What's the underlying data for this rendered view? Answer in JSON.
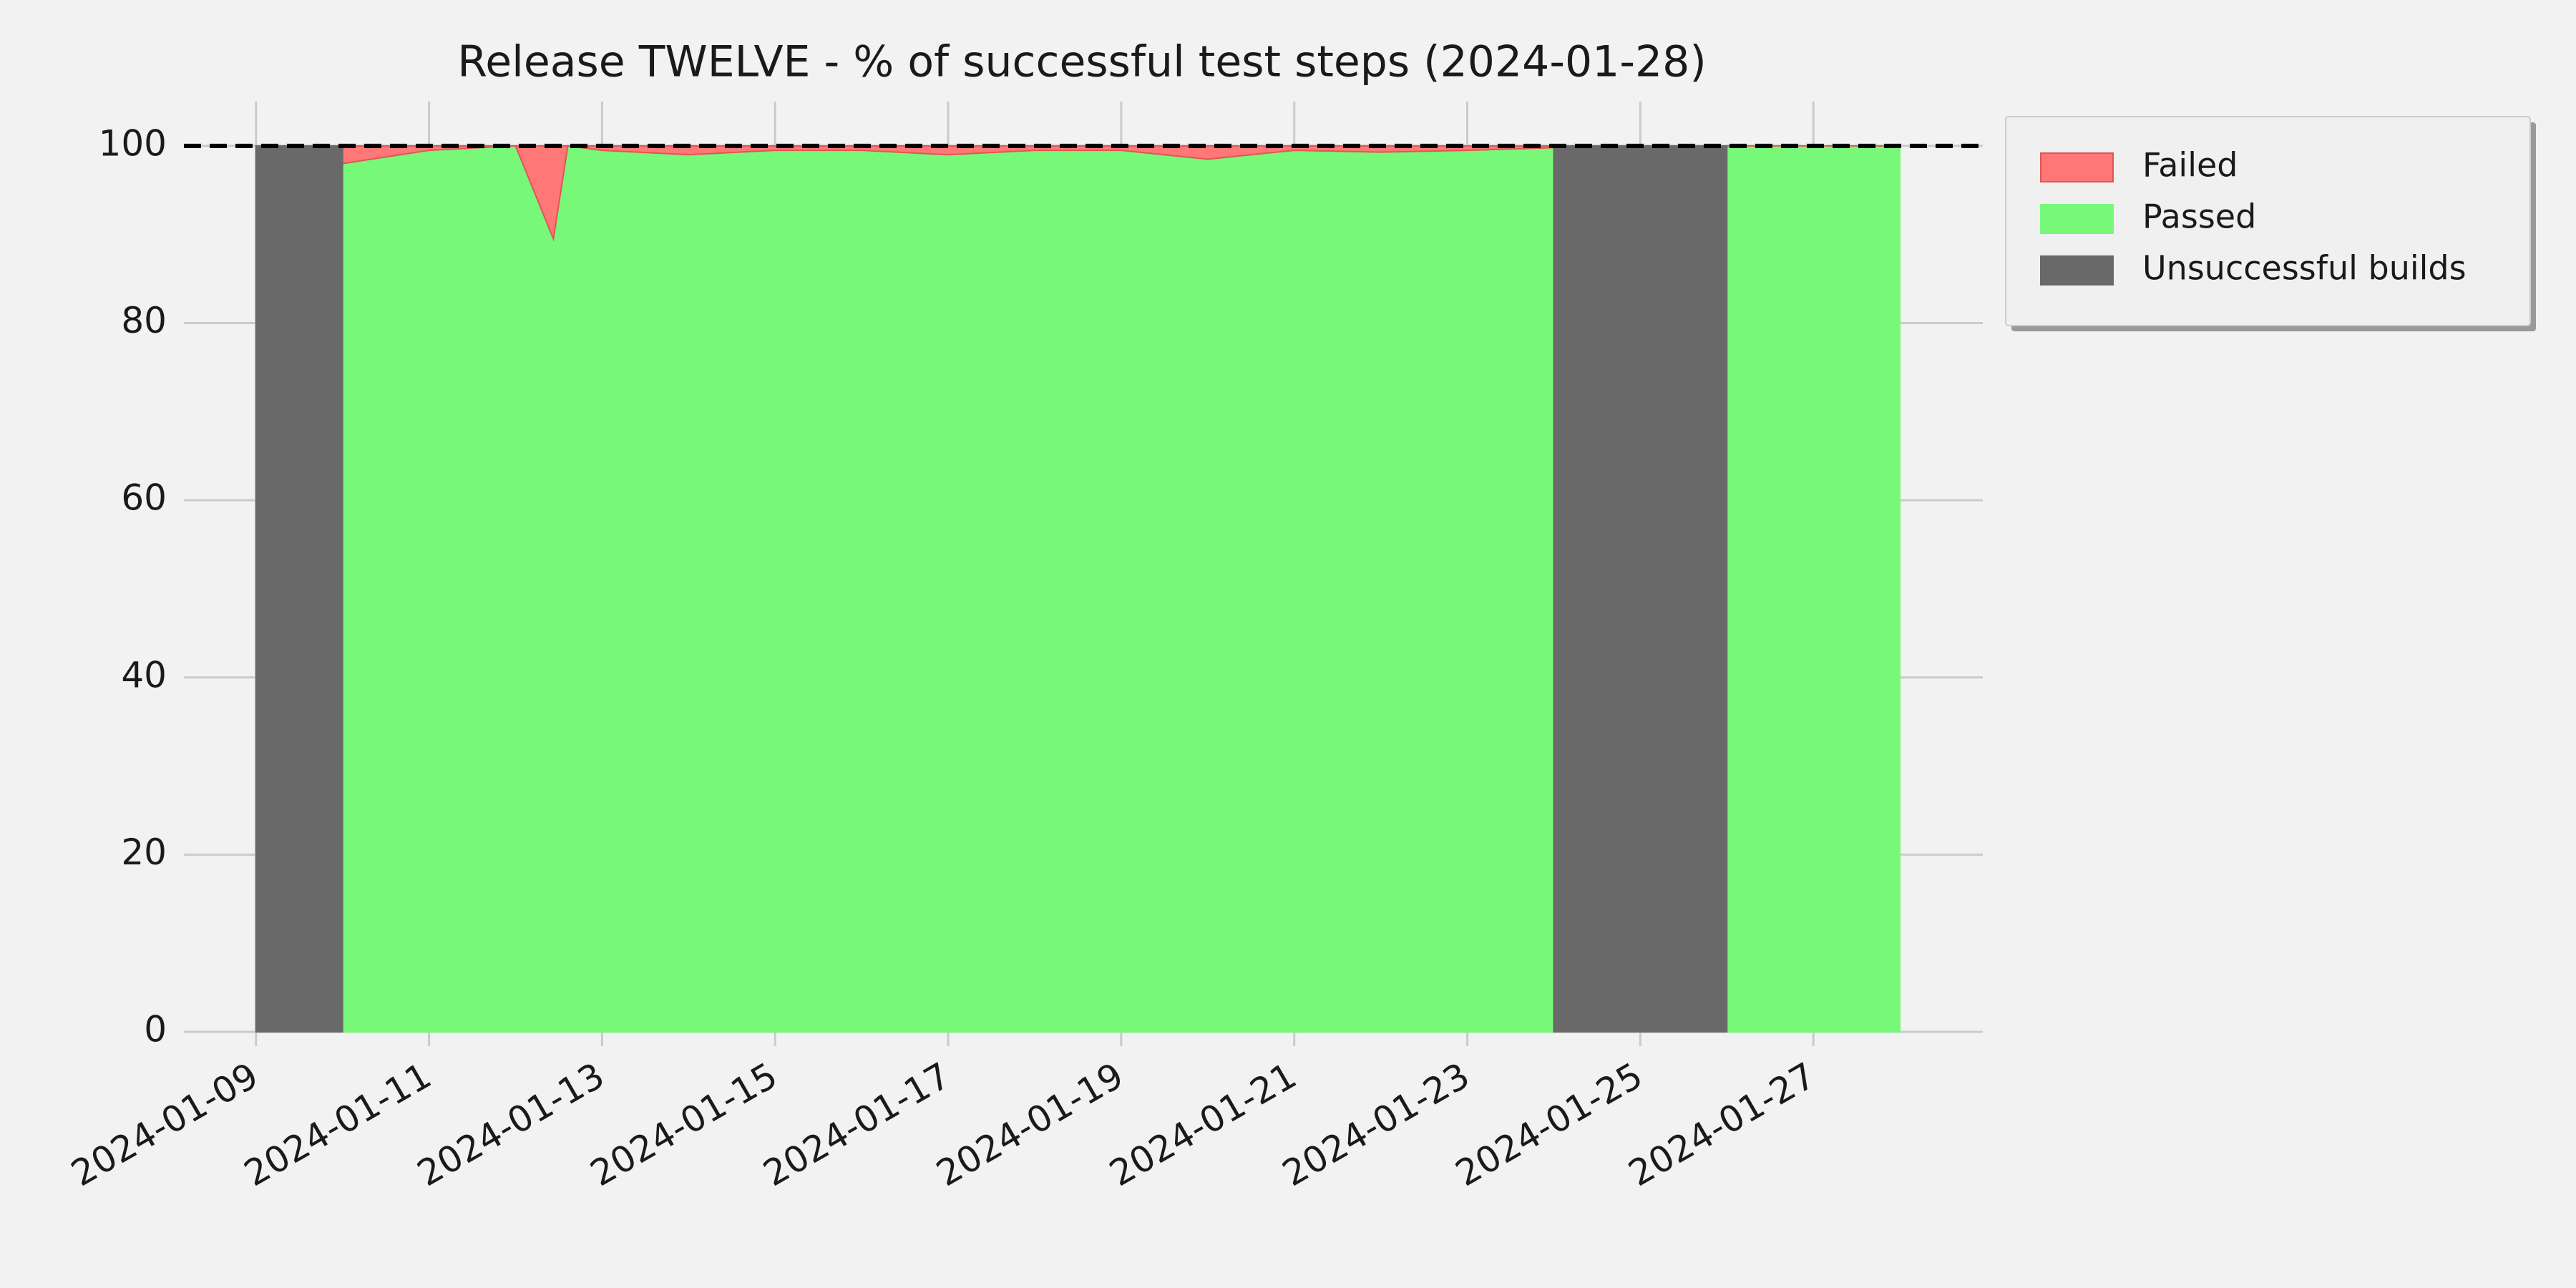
{
  "chart_data": {
    "type": "stacked-area",
    "title": "Release TWELVE - % of successful test steps (2024-01-28)",
    "x": [
      "2024-01-09",
      "2024-01-10",
      "2024-01-11",
      "2024-01-12",
      "2024-01-12T10:30",
      "2024-01-12T14:30",
      "2024-01-13",
      "2024-01-14",
      "2024-01-15",
      "2024-01-16",
      "2024-01-17",
      "2024-01-18",
      "2024-01-19",
      "2024-01-20",
      "2024-01-21",
      "2024-01-22",
      "2024-01-23",
      "2024-01-24",
      "2024-01-25",
      "2024-01-26",
      "2024-01-27",
      "2024-01-28"
    ],
    "series": [
      {
        "name": "Failed",
        "color": "#ff7777",
        "edge": "#e05555",
        "stack": "tests",
        "values": [
          null,
          2,
          0.5,
          0,
          10.5,
          0,
          0.5,
          1,
          0.5,
          0.5,
          1,
          0.5,
          0.5,
          1.5,
          0.5,
          0.7,
          0.5,
          0.2,
          null,
          0,
          0,
          0
        ]
      },
      {
        "name": "Passed",
        "color": "#78f878",
        "edge": "#78f878",
        "stack": "tests",
        "values": [
          null,
          98,
          99.5,
          100,
          89.5,
          100,
          99.5,
          99,
          99.5,
          99.5,
          99,
          99.5,
          99.5,
          98.5,
          99.5,
          99.3,
          99.5,
          99.8,
          null,
          100,
          100,
          100
        ]
      },
      {
        "name": "Unsuccessful builds",
        "color": "#696969",
        "edge": "#696969",
        "stack": "builds",
        "values": [
          100,
          100,
          null,
          null,
          null,
          null,
          null,
          null,
          null,
          null,
          null,
          null,
          null,
          null,
          null,
          null,
          null,
          100,
          100,
          100,
          null,
          null
        ]
      }
    ],
    "xlim": [
      "2024-01-08T04:00",
      "2024-01-28T23:00"
    ],
    "xticks": [
      "2024-01-09",
      "2024-01-11",
      "2024-01-13",
      "2024-01-15",
      "2024-01-17",
      "2024-01-19",
      "2024-01-21",
      "2024-01-23",
      "2024-01-25",
      "2024-01-27"
    ],
    "ylim": [
      0,
      105
    ],
    "yticks": [
      0,
      20,
      40,
      60,
      80,
      100
    ],
    "hline": {
      "value": 100,
      "color": "#000000",
      "style": "dashed"
    },
    "grid": true,
    "legend": "outside-upper-right"
  }
}
